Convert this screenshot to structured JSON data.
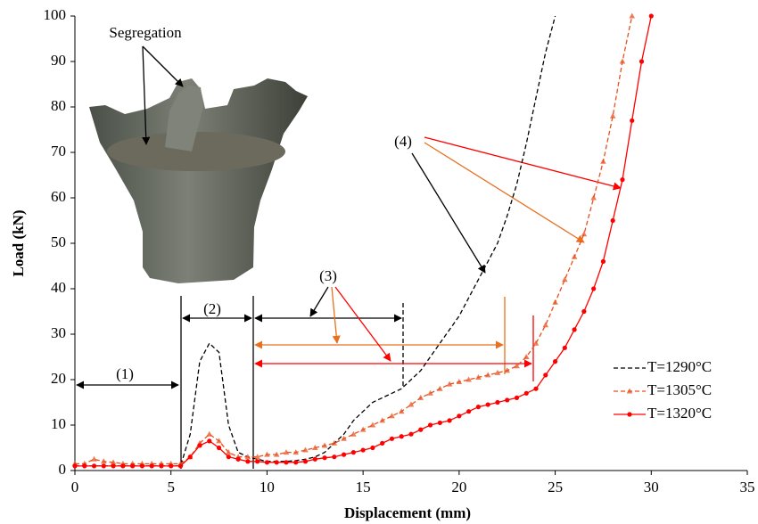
{
  "chart_data": {
    "type": "line",
    "x_label": "Displacement (mm)",
    "y_label": "Load (kN)",
    "xlim": [
      0,
      35
    ],
    "xticks": [
      0,
      5,
      10,
      15,
      20,
      25,
      30,
      35
    ],
    "ylim": [
      0,
      100
    ],
    "yticks": [
      0,
      10,
      20,
      30,
      40,
      50,
      60,
      70,
      80,
      90,
      100
    ],
    "grid": false,
    "legend": "lower right",
    "annotations": [
      "Segregation",
      "(1)",
      "(2)",
      "(3)",
      "(4)"
    ],
    "x": [
      0,
      0.5,
      1,
      1.5,
      2,
      2.5,
      3,
      3.5,
      4,
      4.5,
      5,
      5.5,
      6,
      6.5,
      7,
      7.5,
      8,
      8.5,
      9,
      9.5,
      10,
      10.5,
      11,
      11.5,
      12,
      12.5,
      13,
      13.5,
      14,
      14.5,
      15,
      15.5,
      16,
      16.5,
      17,
      17.5,
      18,
      18.5,
      19,
      19.5,
      20,
      20.5,
      21,
      21.5,
      22,
      22.5,
      23,
      23.5,
      24,
      24.5,
      25,
      25.5,
      26,
      26.5,
      27,
      27.5,
      28,
      28.5,
      29,
      29.5,
      30
    ],
    "series": [
      {
        "name": "T=1290°C",
        "color": "#000000",
        "line_style": "dashed",
        "marker": "none",
        "values": [
          1,
          1,
          1,
          1,
          1,
          1,
          1,
          1,
          1,
          1,
          1,
          1,
          8,
          24,
          28,
          26,
          10,
          4,
          3,
          2.5,
          2,
          2,
          2,
          2.2,
          2.5,
          3,
          4,
          6,
          8,
          11,
          13,
          15,
          16,
          17,
          18,
          20,
          22,
          25,
          28,
          31,
          34,
          38,
          42,
          46,
          50,
          56,
          63,
          72,
          82,
          92,
          100,
          null,
          null,
          null,
          null,
          null,
          null,
          null,
          null,
          null,
          null
        ]
      },
      {
        "name": "T=1305°C",
        "color": "#e8501e",
        "line_style": "dashed",
        "marker": "triangle",
        "values": [
          1.5,
          1.5,
          2.5,
          2,
          1.8,
          1.5,
          1.5,
          1.5,
          1.5,
          1.5,
          1.5,
          1.5,
          3,
          6,
          8,
          6.5,
          4,
          3,
          3,
          3,
          3.5,
          3.5,
          4,
          4,
          4.5,
          5,
          5.5,
          6,
          7,
          8,
          9,
          10,
          11,
          12,
          13,
          14.5,
          16,
          17,
          18,
          19,
          19.5,
          20,
          20.5,
          21,
          21.5,
          22,
          23,
          25,
          28,
          32,
          37,
          42,
          47,
          52,
          60,
          68,
          78,
          90,
          100,
          null,
          null
        ]
      },
      {
        "name": "T=1320°C",
        "color": "#ff0000",
        "line_style": "solid",
        "marker": "circle",
        "values": [
          1,
          1,
          1,
          1,
          1,
          1,
          1,
          1,
          1,
          1,
          1,
          1,
          3,
          5.5,
          6.5,
          5,
          3,
          2.5,
          2,
          2,
          1.8,
          1.8,
          1.8,
          1.8,
          2,
          2.5,
          2.8,
          3,
          3.5,
          4,
          4.5,
          5,
          6,
          7,
          7.5,
          8,
          9,
          10,
          10.5,
          11,
          12,
          13,
          14,
          14.5,
          15,
          15.5,
          16,
          17,
          18,
          21,
          24,
          27,
          31,
          35,
          40,
          46,
          55,
          64,
          77,
          90,
          100
        ]
      }
    ]
  }
}
